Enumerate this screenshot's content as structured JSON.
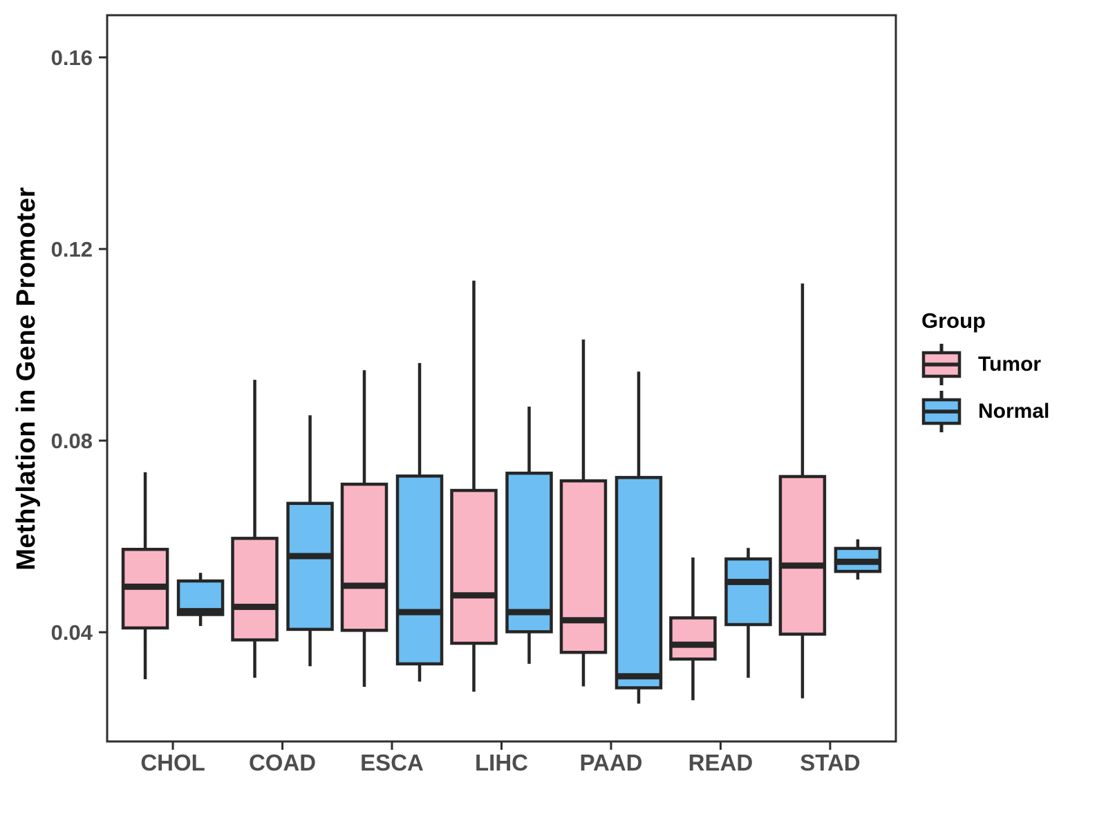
{
  "legend": {
    "title": "Group",
    "items": [
      {
        "label": "Tumor",
        "color": "#FAB5C4"
      },
      {
        "label": "Normal",
        "color": "#6CBEF3"
      }
    ]
  },
  "chart_data": {
    "type": "boxplot",
    "title": "",
    "xlabel": "",
    "ylabel": "Methylation in Gene Promoter",
    "categories": [
      "CHOL",
      "COAD",
      "ESCA",
      "LIHC",
      "PAAD",
      "READ",
      "STAD"
    ],
    "groups": [
      "Tumor",
      "Normal"
    ],
    "group_colors": {
      "Tumor": "#FAB5C4",
      "Normal": "#6CBEF3"
    },
    "ylim": [
      0.0172,
      0.1688
    ],
    "yticks": [
      0.04,
      0.08,
      0.12,
      0.16
    ],
    "grid": false,
    "legend_position": "right",
    "series": [
      {
        "name": "Tumor",
        "color": "#FAB5C4",
        "boxes": [
          {
            "category": "CHOL",
            "whisker_low": 0.0302,
            "q1": 0.0409,
            "median": 0.0495,
            "q3": 0.0573,
            "whisker_high": 0.0734
          },
          {
            "category": "COAD",
            "whisker_low": 0.0305,
            "q1": 0.0384,
            "median": 0.0453,
            "q3": 0.0596,
            "whisker_high": 0.0927
          },
          {
            "category": "ESCA",
            "whisker_low": 0.0286,
            "q1": 0.0404,
            "median": 0.0497,
            "q3": 0.0709,
            "whisker_high": 0.0947
          },
          {
            "category": "LIHC",
            "whisker_low": 0.0276,
            "q1": 0.0377,
            "median": 0.0477,
            "q3": 0.0696,
            "whisker_high": 0.1134
          },
          {
            "category": "PAAD",
            "whisker_low": 0.0287,
            "q1": 0.0358,
            "median": 0.0425,
            "q3": 0.0716,
            "whisker_high": 0.1011
          },
          {
            "category": "READ",
            "whisker_low": 0.0258,
            "q1": 0.0344,
            "median": 0.0374,
            "q3": 0.043,
            "whisker_high": 0.0556
          },
          {
            "category": "STAD",
            "whisker_low": 0.0262,
            "q1": 0.0396,
            "median": 0.0539,
            "q3": 0.0725,
            "whisker_high": 0.1128
          }
        ]
      },
      {
        "name": "Normal",
        "color": "#6CBEF3",
        "boxes": [
          {
            "category": "CHOL",
            "whisker_low": 0.0413,
            "q1": 0.0437,
            "median": 0.0444,
            "q3": 0.0507,
            "whisker_high": 0.0524
          },
          {
            "category": "COAD",
            "whisker_low": 0.0329,
            "q1": 0.0406,
            "median": 0.0559,
            "q3": 0.0669,
            "whisker_high": 0.0853
          },
          {
            "category": "ESCA",
            "whisker_low": 0.0297,
            "q1": 0.0334,
            "median": 0.0442,
            "q3": 0.0726,
            "whisker_high": 0.0962
          },
          {
            "category": "LIHC",
            "whisker_low": 0.0334,
            "q1": 0.0401,
            "median": 0.0442,
            "q3": 0.0732,
            "whisker_high": 0.0871
          },
          {
            "category": "PAAD",
            "whisker_low": 0.0251,
            "q1": 0.0284,
            "median": 0.0308,
            "q3": 0.0723,
            "whisker_high": 0.0944
          },
          {
            "category": "READ",
            "whisker_low": 0.0305,
            "q1": 0.0416,
            "median": 0.0505,
            "q3": 0.0553,
            "whisker_high": 0.0576
          },
          {
            "category": "STAD",
            "whisker_low": 0.051,
            "q1": 0.0527,
            "median": 0.0547,
            "q3": 0.0575,
            "whisker_high": 0.0594
          }
        ]
      }
    ]
  }
}
